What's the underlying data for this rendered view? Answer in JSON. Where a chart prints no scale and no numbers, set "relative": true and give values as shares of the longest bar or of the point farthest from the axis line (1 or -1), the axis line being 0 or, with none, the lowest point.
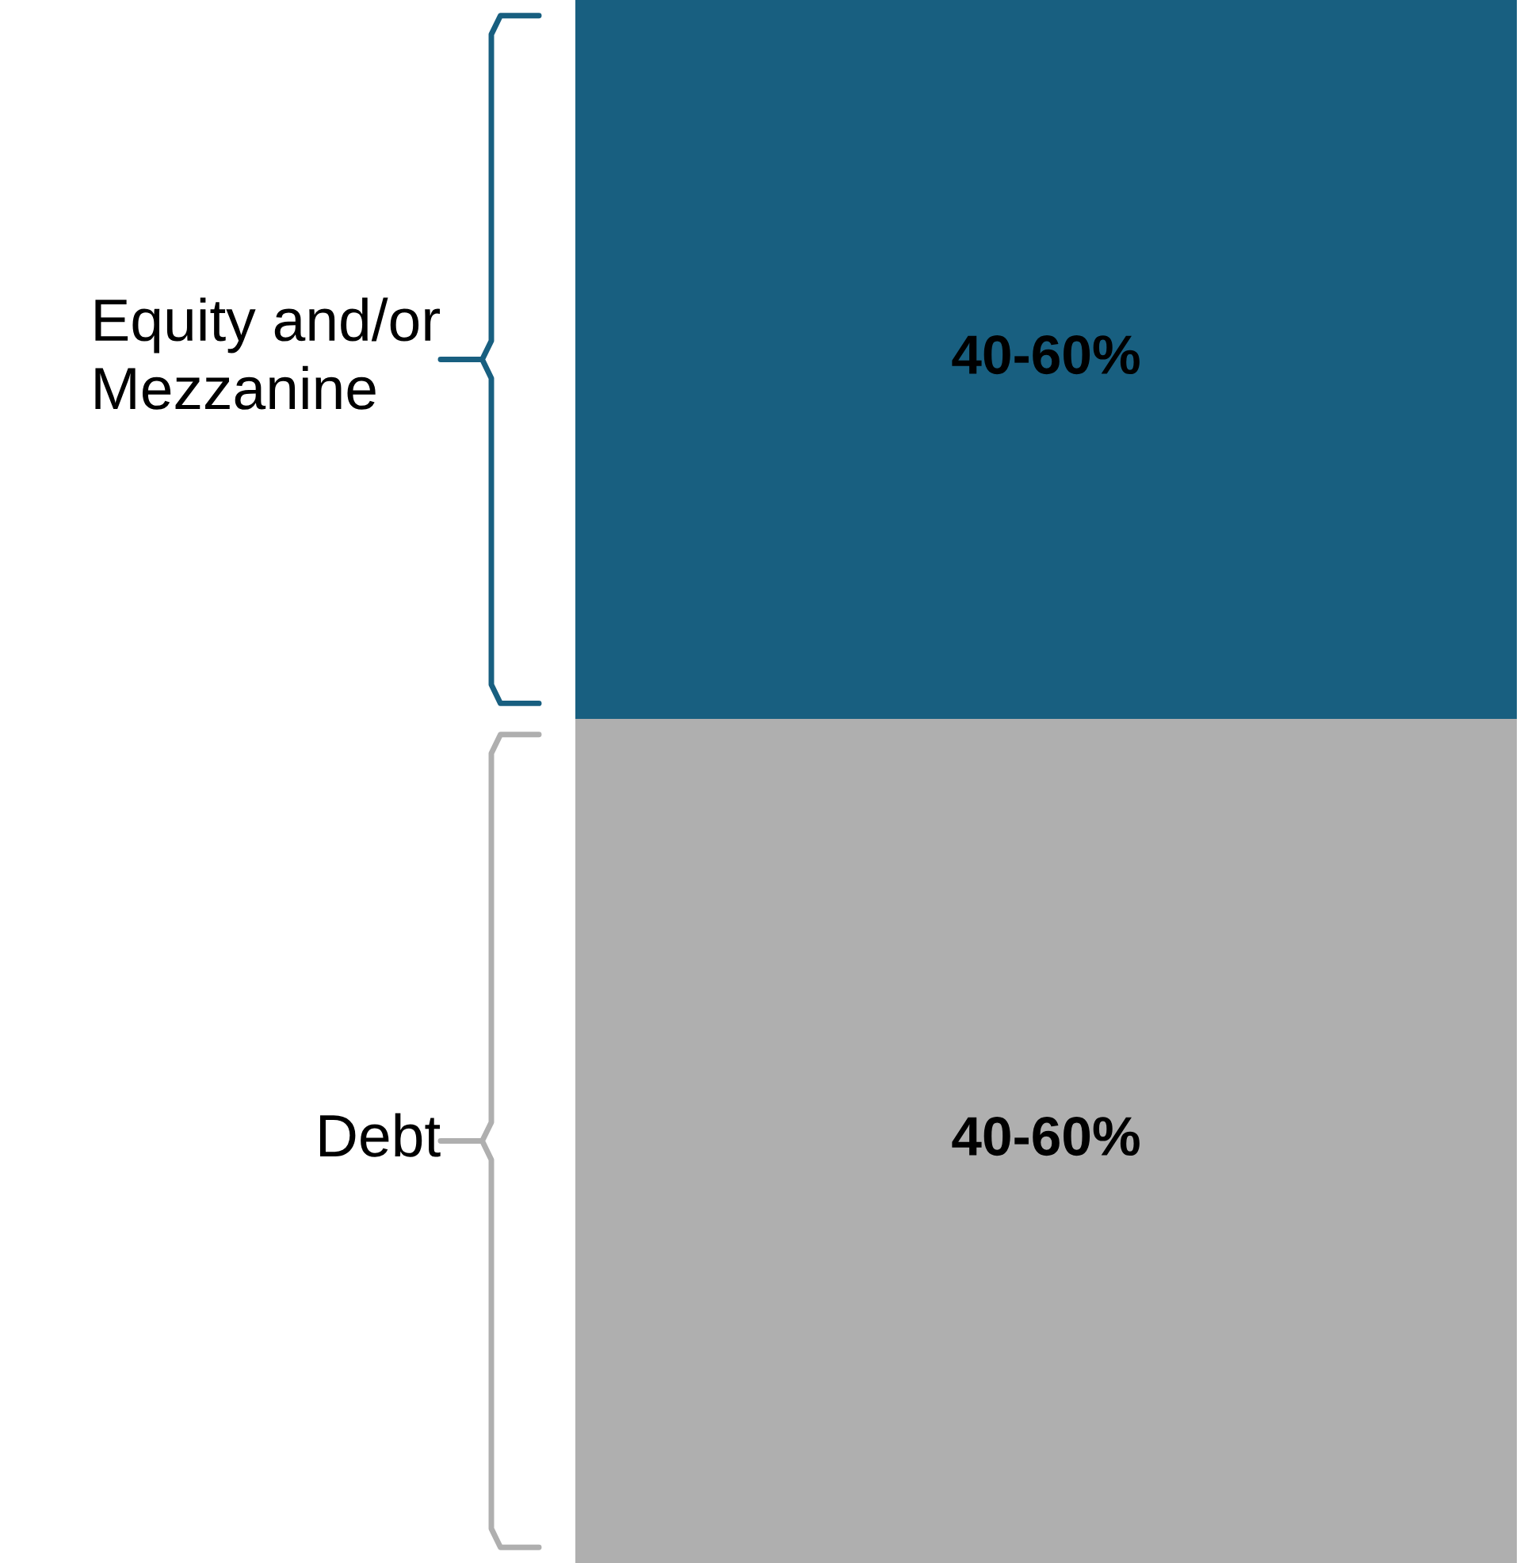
{
  "chart_data": {
    "type": "bar",
    "stacked": true,
    "relative": true,
    "categories": [
      null
    ],
    "series": [
      {
        "name": "Debt",
        "color": "#afafaf",
        "values": [
          0.54
        ]
      },
      {
        "name": "Equity and/or Mezzanine",
        "color": "#185f80",
        "values": [
          0.46
        ]
      }
    ],
    "annotations": [
      "40-60%",
      "40-60%"
    ]
  }
}
